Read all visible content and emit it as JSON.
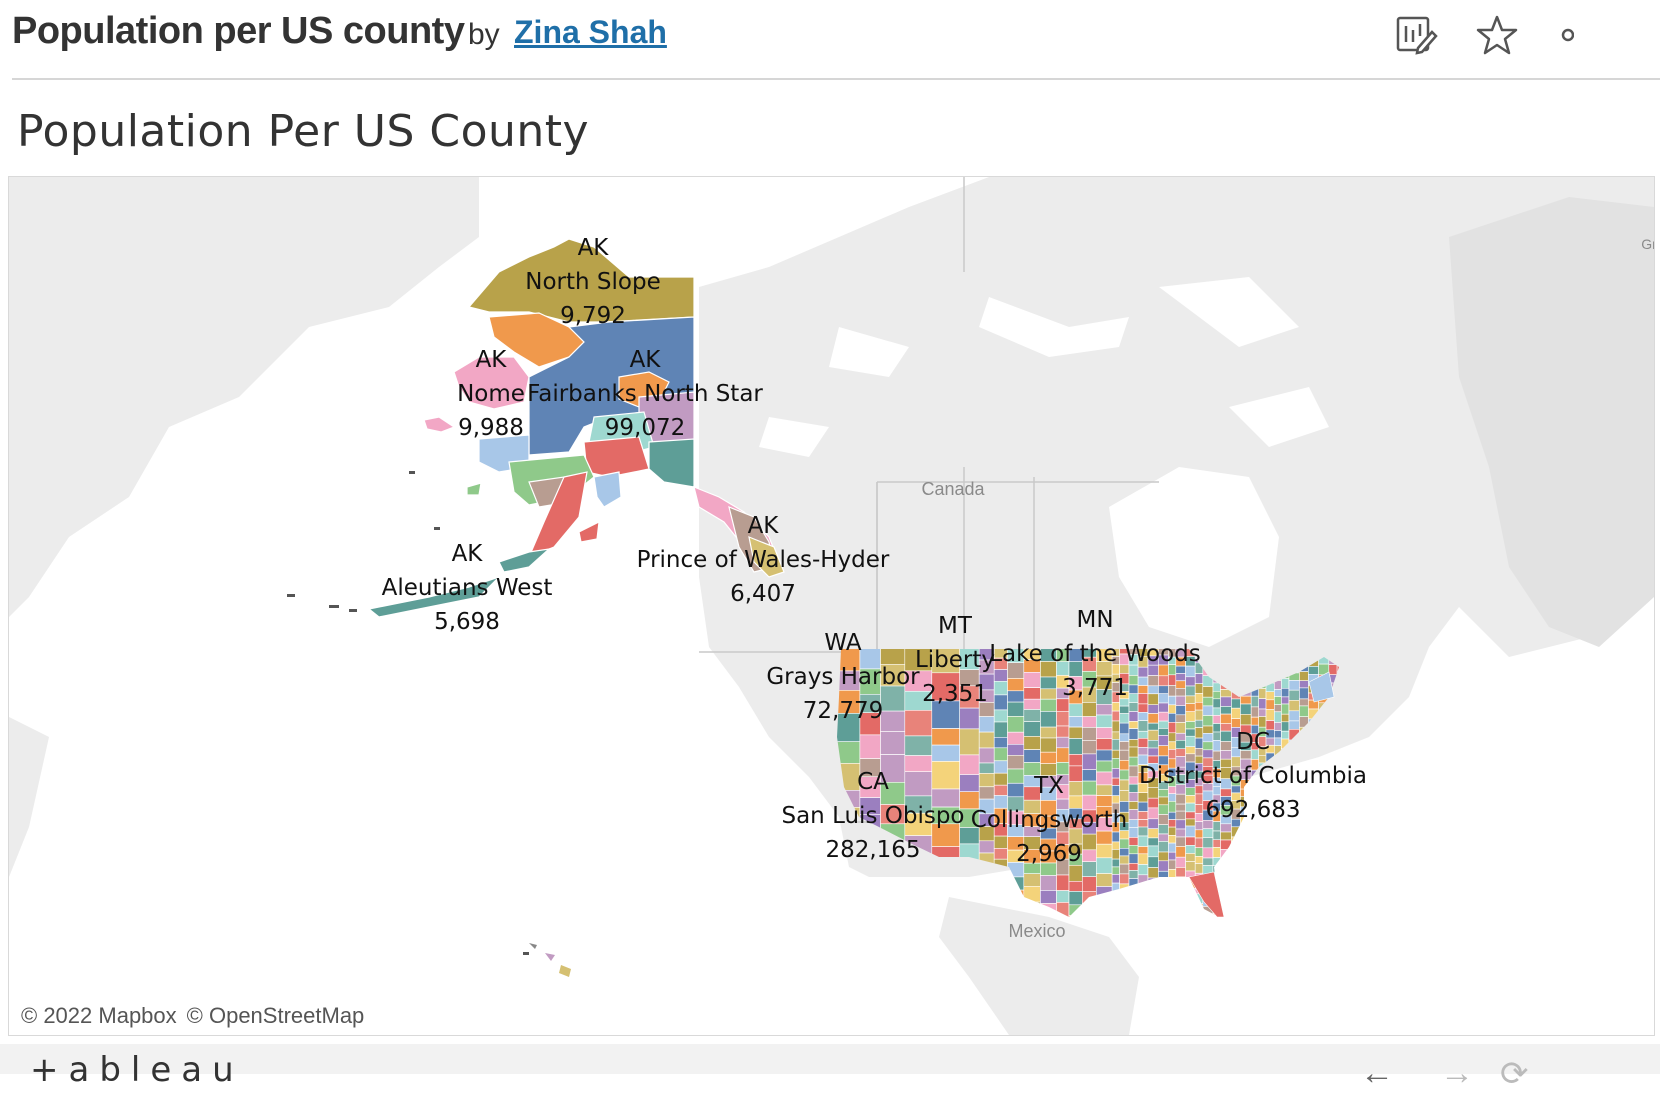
{
  "header": {
    "viz_title": "Population per US county",
    "by_label": "by",
    "author": "Zina Shah",
    "icons": [
      "edit-chart-icon",
      "favorite-star-icon",
      "more-icon"
    ]
  },
  "dashboard": {
    "title": "Population Per US County"
  },
  "map": {
    "basemap_labels": {
      "canada": "Canada",
      "mexico": "Mexico",
      "greenland": "Gr"
    },
    "attribution": {
      "mapbox": "© 2022 Mapbox",
      "osm": "© OpenStreetMap"
    },
    "marks": [
      {
        "state": "AK",
        "county": "North Slope",
        "population": "9,792"
      },
      {
        "state": "AK",
        "county": "Nome",
        "population": "9,988"
      },
      {
        "state": "AK",
        "county": "Fairbanks North Star",
        "population": "99,072"
      },
      {
        "state": "AK",
        "county": "Aleutians West",
        "population": "5,698"
      },
      {
        "state": "AK",
        "county": "Prince of Wales-Hyder",
        "population": "6,407"
      },
      {
        "state": "WA",
        "county": "Grays Harbor",
        "population": "72,779"
      },
      {
        "state": "MT",
        "county": "Liberty",
        "population": "2,351"
      },
      {
        "state": "MN",
        "county": "Lake of the Woods",
        "population": "3,771"
      },
      {
        "state": "CA",
        "county": "San Luis Obispo",
        "population": "282,165"
      },
      {
        "state": "TX",
        "county": "Collingsworth",
        "population": "2,969"
      },
      {
        "state": "DC",
        "county": "District of Columbia",
        "population": "692,683"
      }
    ],
    "palette": [
      "#b8a24a",
      "#f0994c",
      "#5f84b5",
      "#e36a66",
      "#8fc98a",
      "#f2a7c5",
      "#9ed8d0",
      "#c19bc2",
      "#a8c7e8",
      "#5e9e97",
      "#d5c072",
      "#e8837a",
      "#b89d91",
      "#f4d37a",
      "#9b7fbf",
      "#7fb2a8"
    ]
  },
  "footer": {
    "logo": "+ableau",
    "icons": [
      "undo-icon",
      "redo-icon",
      "revert-icon"
    ]
  }
}
